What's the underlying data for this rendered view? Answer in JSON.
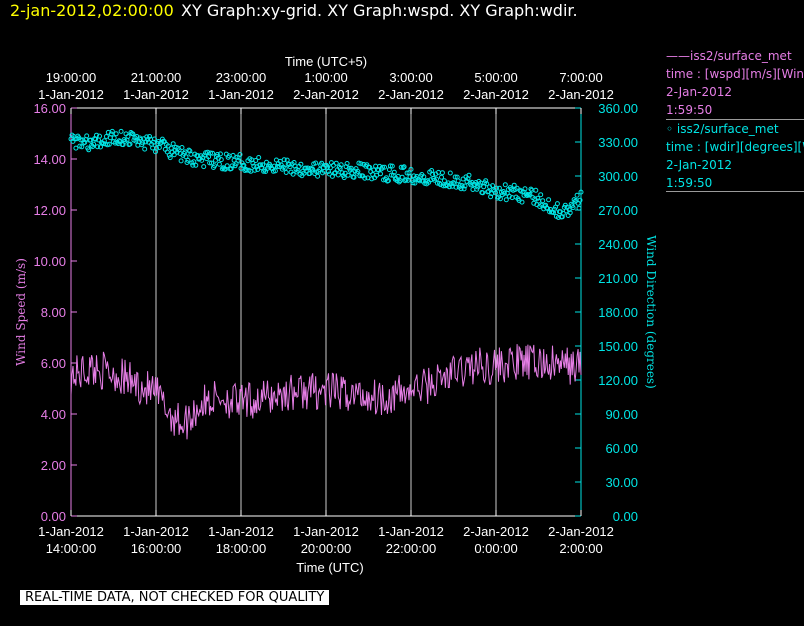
{
  "header": {
    "time": "2-jan-2012,02:00:00",
    "graphs": "XY Graph:xy-grid.  XY Graph:wspd.  XY Graph:wdir."
  },
  "legend": {
    "wspd": {
      "name": "——iss2/surface_met",
      "desc": "time : [wspd][m/s][Wind",
      "date": "2-Jan-2012",
      "time": "1:59:50"
    },
    "wdir": {
      "name": "◦ iss2/surface_met",
      "desc": "time : [wdir][degrees][W",
      "date": "2-Jan-2012",
      "time": "1:59:50"
    }
  },
  "warning": "REAL-TIME DATA, NOT CHECKED FOR QUALITY",
  "colors": {
    "wspd": "#e67ee6",
    "wdir": "#00e5e5",
    "grid": "#ffffff",
    "header_time": "#ffff00"
  },
  "chart_data": {
    "type": "line",
    "x_axis_bottom": {
      "label": "Time (UTC)",
      "ticks": [
        {
          "date": "1-Jan-2012",
          "time": "14:00:00"
        },
        {
          "date": "1-Jan-2012",
          "time": "16:00:00"
        },
        {
          "date": "1-Jan-2012",
          "time": "18:00:00"
        },
        {
          "date": "1-Jan-2012",
          "time": "20:00:00"
        },
        {
          "date": "1-Jan-2012",
          "time": "22:00:00"
        },
        {
          "date": "2-Jan-2012",
          "time": "0:00:00"
        },
        {
          "date": "2-Jan-2012",
          "time": "2:00:00"
        }
      ]
    },
    "x_axis_top": {
      "label": "Time (UTC+5)",
      "ticks": [
        {
          "time": "19:00:00",
          "date": "1-Jan-2012"
        },
        {
          "time": "21:00:00",
          "date": "1-Jan-2012"
        },
        {
          "time": "23:00:00",
          "date": "1-Jan-2012"
        },
        {
          "time": "1:00:00",
          "date": "2-Jan-2012"
        },
        {
          "time": "3:00:00",
          "date": "2-Jan-2012"
        },
        {
          "time": "5:00:00",
          "date": "2-Jan-2012"
        },
        {
          "time": "7:00:00",
          "date": "2-Jan-2012"
        }
      ]
    },
    "xlim": [
      "2012-01-01 14:00",
      "2012-01-02 02:00"
    ],
    "grid": "vertical",
    "y_left": {
      "label": "Wind Speed (m/s)",
      "min": 0,
      "max": 16,
      "tick_labels": [
        "0.00",
        "2.00",
        "4.00",
        "6.00",
        "8.00",
        "10.00",
        "12.00",
        "14.00",
        "16.00"
      ]
    },
    "y_right": {
      "label": "Wind Direction (degrees)",
      "min": 0,
      "max": 360,
      "tick_labels": [
        "0.00",
        "30.00",
        "60.00",
        "90.00",
        "120.00",
        "150.00",
        "180.00",
        "210.00",
        "240.00",
        "270.00",
        "300.00",
        "330.00",
        "360.00"
      ]
    },
    "series": [
      {
        "name": "iss2/surface_met",
        "variable": "wspd",
        "axis": "left",
        "style": "line",
        "x": [
          "2012-01-01 14:00",
          "2012-01-01 14:30",
          "2012-01-01 15:00",
          "2012-01-01 15:30",
          "2012-01-01 16:00",
          "2012-01-01 16:20",
          "2012-01-01 16:40",
          "2012-01-01 17:00",
          "2012-01-01 17:30",
          "2012-01-01 18:00",
          "2012-01-01 18:30",
          "2012-01-01 19:00",
          "2012-01-01 19:30",
          "2012-01-01 20:00",
          "2012-01-01 20:30",
          "2012-01-01 21:00",
          "2012-01-01 21:30",
          "2012-01-01 22:00",
          "2012-01-01 22:30",
          "2012-01-01 23:00",
          "2012-01-01 23:30",
          "2012-01-02 00:00",
          "2012-01-02 00:30",
          "2012-01-02 01:00",
          "2012-01-02 01:30",
          "2012-01-02 02:00"
        ],
        "values": [
          5.5,
          5.8,
          5.6,
          5.2,
          4.8,
          4.0,
          3.6,
          4.3,
          4.7,
          4.4,
          4.6,
          4.8,
          4.9,
          4.9,
          4.8,
          4.7,
          4.7,
          4.9,
          5.2,
          5.6,
          5.9,
          5.9,
          6.0,
          6.0,
          5.9,
          5.9
        ]
      },
      {
        "name": "iss2/surface_met",
        "variable": "wdir",
        "axis": "right",
        "style": "markers",
        "x": [
          "2012-01-01 14:00",
          "2012-01-01 14:30",
          "2012-01-01 15:00",
          "2012-01-01 15:30",
          "2012-01-01 16:00",
          "2012-01-01 16:30",
          "2012-01-01 17:00",
          "2012-01-01 17:30",
          "2012-01-01 18:00",
          "2012-01-01 18:30",
          "2012-01-01 19:00",
          "2012-01-01 19:30",
          "2012-01-01 20:00",
          "2012-01-01 20:30",
          "2012-01-01 21:00",
          "2012-01-01 21:30",
          "2012-01-01 22:00",
          "2012-01-01 22:30",
          "2012-01-01 23:00",
          "2012-01-01 23:30",
          "2012-01-02 00:00",
          "2012-01-02 00:30",
          "2012-01-02 01:00",
          "2012-01-02 01:20",
          "2012-01-02 01:40",
          "2012-01-02 02:00"
        ],
        "values": [
          332,
          328,
          335,
          332,
          328,
          320,
          315,
          313,
          312,
          310,
          309,
          307,
          305,
          305,
          304,
          302,
          301,
          299,
          297,
          293,
          287,
          285,
          280,
          272,
          268,
          280
        ]
      }
    ]
  }
}
